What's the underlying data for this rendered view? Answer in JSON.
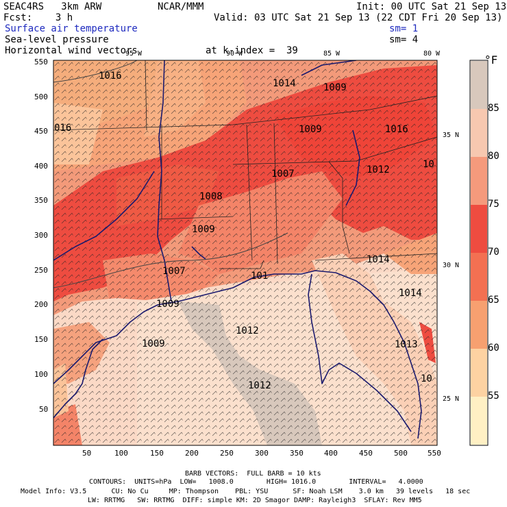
{
  "header": {
    "model": "SEAC4RS   3km ARW",
    "center": "NCAR/MMM",
    "init": "Init: 00 UTC Sat 21 Sep 13",
    "fcst": "Fcst:    3 h",
    "valid": "Valid: 03 UTC Sat 21 Sep 13 (22 CDT Fri 20 Sep 13)",
    "field1": "Surface air temperature",
    "field2": "Sea-level pressure",
    "field3": "Horizontal wind vectors",
    "sm1": "sm= 1",
    "sm2": "sm= 4",
    "level": "at k-index =  39"
  },
  "axes": {
    "x_ticks": [
      "50",
      "100",
      "150",
      "200",
      "250",
      "300",
      "350",
      "400",
      "450",
      "500",
      "550"
    ],
    "y_ticks": [
      "550",
      "500",
      "450",
      "400",
      "350",
      "300",
      "250",
      "200",
      "150",
      "100",
      "50"
    ],
    "lon_labels": [
      "95 W",
      "90 W",
      "85 W",
      "80 W"
    ],
    "lat_labels": [
      "35 N",
      "30 N",
      "25 N"
    ]
  },
  "pressure_labels": [
    {
      "text": "1016",
      "kind": "H"
    },
    {
      "text": "1014",
      "kind": "H"
    },
    {
      "text": "1009",
      "kind": "L"
    },
    {
      "text": "016",
      "kind": "L"
    },
    {
      "text": "1009",
      "kind": "L"
    },
    {
      "text": "1016",
      "kind": "H"
    },
    {
      "text": "1007",
      "kind": "L"
    },
    {
      "text": "1012",
      "kind": "H"
    },
    {
      "text": "1008",
      "kind": "L"
    },
    {
      "text": "10",
      "kind": "H"
    },
    {
      "text": "1009",
      "kind": "L"
    },
    {
      "text": "1007",
      "kind": "L"
    },
    {
      "text": "101",
      "kind": "H"
    },
    {
      "text": "1014",
      "kind": "H"
    },
    {
      "text": "1009",
      "kind": "L"
    },
    {
      "text": "1014",
      "kind": "H"
    },
    {
      "text": "1012",
      "kind": "H"
    },
    {
      "text": "1009",
      "kind": "L"
    },
    {
      "text": "1013",
      "kind": "L"
    },
    {
      "text": "1012",
      "kind": "H"
    },
    {
      "text": "10",
      "kind": "H"
    }
  ],
  "colorbar": {
    "unit": "°F",
    "labels": [
      "85",
      "80",
      "75",
      "70",
      "65",
      "60",
      "55"
    ],
    "colors": [
      "#d8c8bc",
      "#f7c8b0",
      "#f59a7c",
      "#ee4c40",
      "#f37052",
      "#f7a070",
      "#fdd2a2",
      "#fff0c4"
    ]
  },
  "footer": {
    "barb": "BARB VECTORS:  FULL BARB = 10 kts",
    "contours": "CONTOURS:  UNITS=hPa  LOW=   1008.0        HIGH= 1016.0        INTERVAL=   4.0000",
    "model_info": "Model Info: V3.5      CU: No Cu     MP: Thompson    PBL: YSU      SF: Noah LSM    3.0 km   39 levels   18 sec",
    "model_info2": "LW: RRTMG   SW: RRTMG  DIFF: simple KM: 2D Smagor DAMP: Rayleigh3  SFLAY: Rev MM5"
  }
}
